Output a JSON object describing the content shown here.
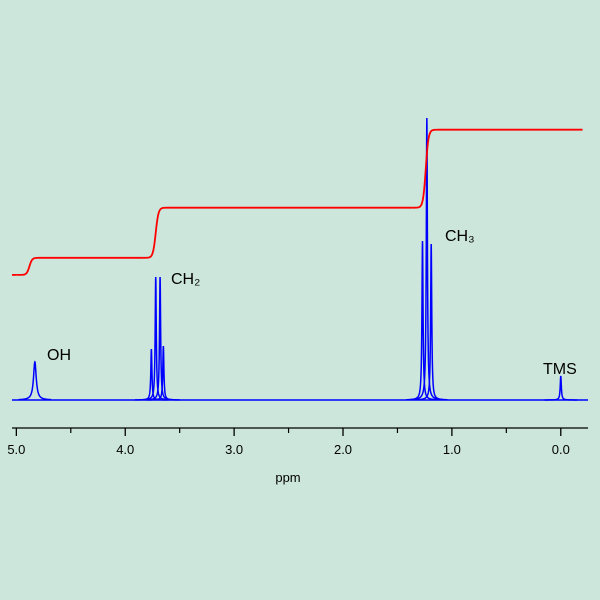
{
  "chart_data": {
    "type": "nmr",
    "x_label": "ppm",
    "xlim": [
      5.04,
      -0.25
    ],
    "xticks": [
      {
        "value": 5,
        "label": "5.0"
      },
      {
        "value": 4,
        "label": "4.0"
      },
      {
        "value": 3,
        "label": "3.0"
      },
      {
        "value": 2,
        "label": "2.0"
      },
      {
        "value": 1,
        "label": "1.0"
      },
      {
        "value": 0,
        "label": "0.0"
      }
    ],
    "xminor": [
      4.5,
      3.5,
      2.5,
      1.5,
      0.5
    ],
    "ylim": [
      0,
      100
    ],
    "spectrum": {
      "color": "#0000ff",
      "x": [
        4.83,
        3.76,
        3.72,
        3.68,
        3.65,
        1.27,
        1.23,
        1.19,
        0.0
      ],
      "values": [
        12.7,
        17,
        41,
        41,
        18,
        53,
        94,
        52,
        8
      ]
    },
    "integral": {
      "color": "#ff0000",
      "start": 41.7,
      "x": [
        4.88,
        3.72,
        1.24
      ],
      "values": [
        5.7,
        16.7,
        26
      ]
    },
    "annotations": [
      "OH",
      "CH₂",
      "CH₃",
      "TMS"
    ]
  }
}
